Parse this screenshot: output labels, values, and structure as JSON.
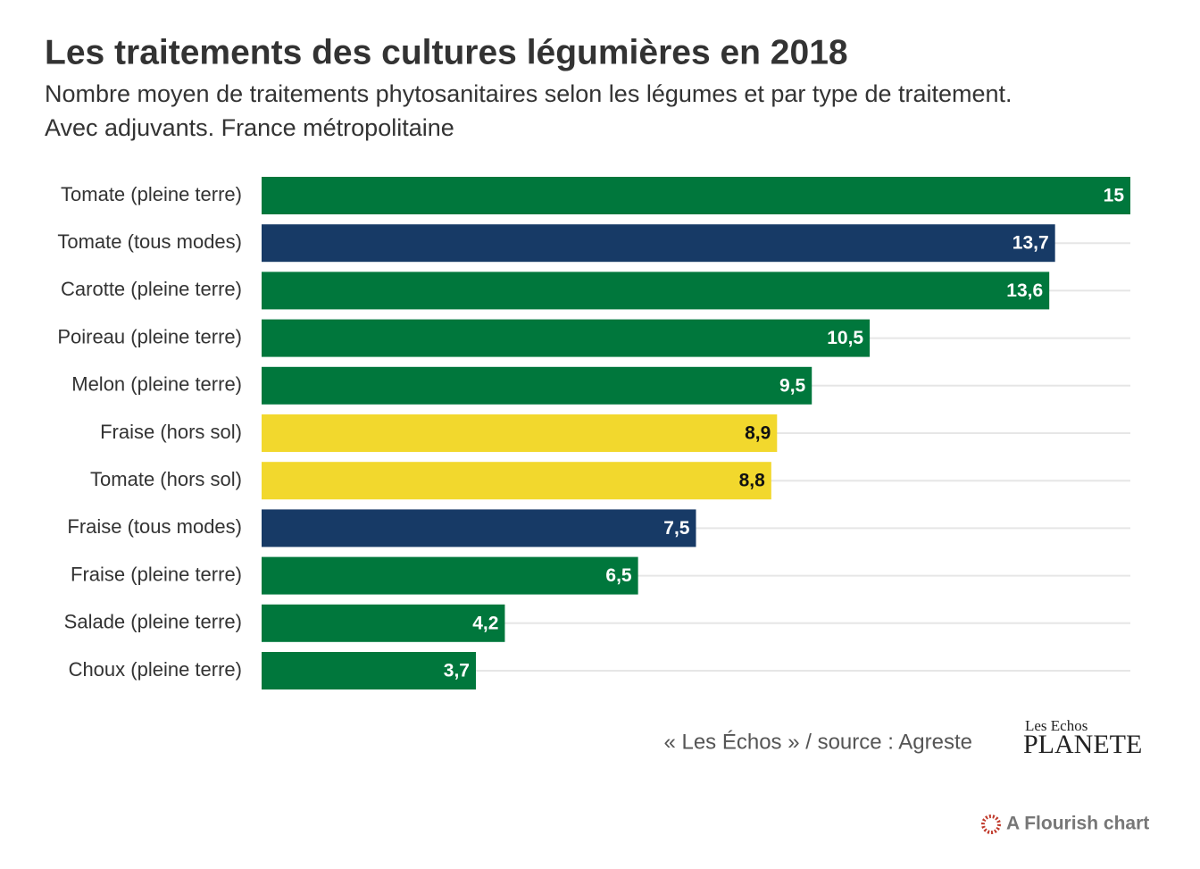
{
  "chart_data": {
    "type": "bar",
    "orientation": "horizontal",
    "title": "Les traitements des cultures légumières en 2018",
    "subtitle": [
      "Nombre moyen de traitements phytosanitaires selon les légumes et par type de traitement.",
      "Avec adjuvants. France métropolitaine"
    ],
    "categories": [
      "Tomate (pleine terre)",
      "Tomate (tous modes)",
      "Carotte (pleine terre)",
      "Poireau (pleine terre)",
      "Melon (pleine terre)",
      "Fraise (hors sol)",
      "Tomate (hors sol)",
      "Fraise (tous modes)",
      "Fraise (pleine terre)",
      "Salade (pleine terre)",
      "Choux (pleine terre)"
    ],
    "values": [
      15,
      13.7,
      13.6,
      10.5,
      9.5,
      8.9,
      8.8,
      7.5,
      6.5,
      4.2,
      3.7
    ],
    "value_labels": [
      "15",
      "13,7",
      "13,6",
      "10,5",
      "9,5",
      "8,9",
      "8,8",
      "7,5",
      "6,5",
      "4,2",
      "3,7"
    ],
    "colors": [
      "#00773c",
      "#173a66",
      "#00773c",
      "#00773c",
      "#00773c",
      "#f2d82d",
      "#f2d82d",
      "#173a66",
      "#00773c",
      "#00773c",
      "#00773c"
    ],
    "xlim": [
      0,
      15
    ],
    "source": "« Les Échos » / source : Agreste",
    "logo": [
      "Les Echos",
      "PLANETE"
    ],
    "credit": "A Flourish chart"
  }
}
